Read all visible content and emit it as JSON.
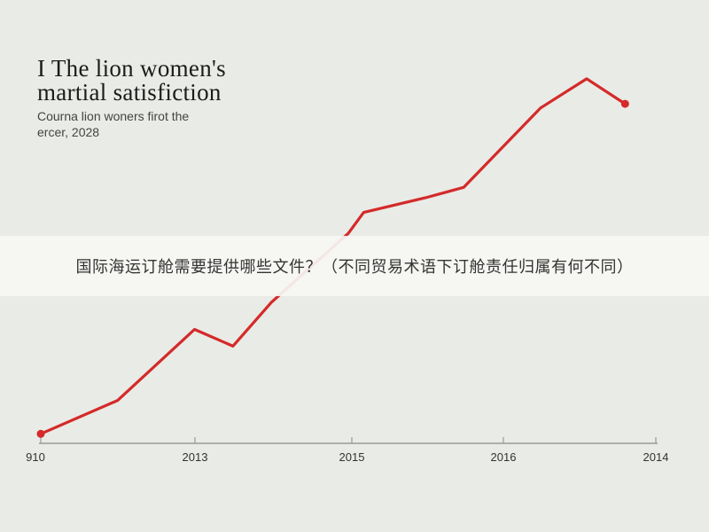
{
  "title_line1": "I The lion women's",
  "title_line2": "martial satisfiction",
  "subtitle_line1": "Courna lion woners firot the",
  "subtitle_line2": "ercer, 2028",
  "banner_text": "国际海运订舱需要提供哪些文件？（不同贸易术语下订舱责任归属有何不同）",
  "colors": {
    "line": "#d42a2a",
    "axis": "#9a9a9a",
    "background": "#e9ebe6"
  },
  "chart_data": {
    "type": "line",
    "title": "I The lion women's martial satisfiction",
    "x_ticks": [
      "910",
      "2013",
      "2015",
      "2016",
      "2014"
    ],
    "tick_positions": [
      0,
      2,
      4,
      6,
      8
    ],
    "series": [
      {
        "x": [
          0,
          1,
          2,
          2.5,
          3,
          4,
          4.2,
          5,
          5.5,
          6.5,
          7.1,
          7.6
        ],
        "y": [
          2,
          18,
          52,
          44,
          65,
          98,
          108,
          115,
          120,
          158,
          172,
          160
        ]
      }
    ],
    "xlim": [
      0,
      8
    ],
    "ylim": [
      0,
      180
    ],
    "grid": false
  }
}
